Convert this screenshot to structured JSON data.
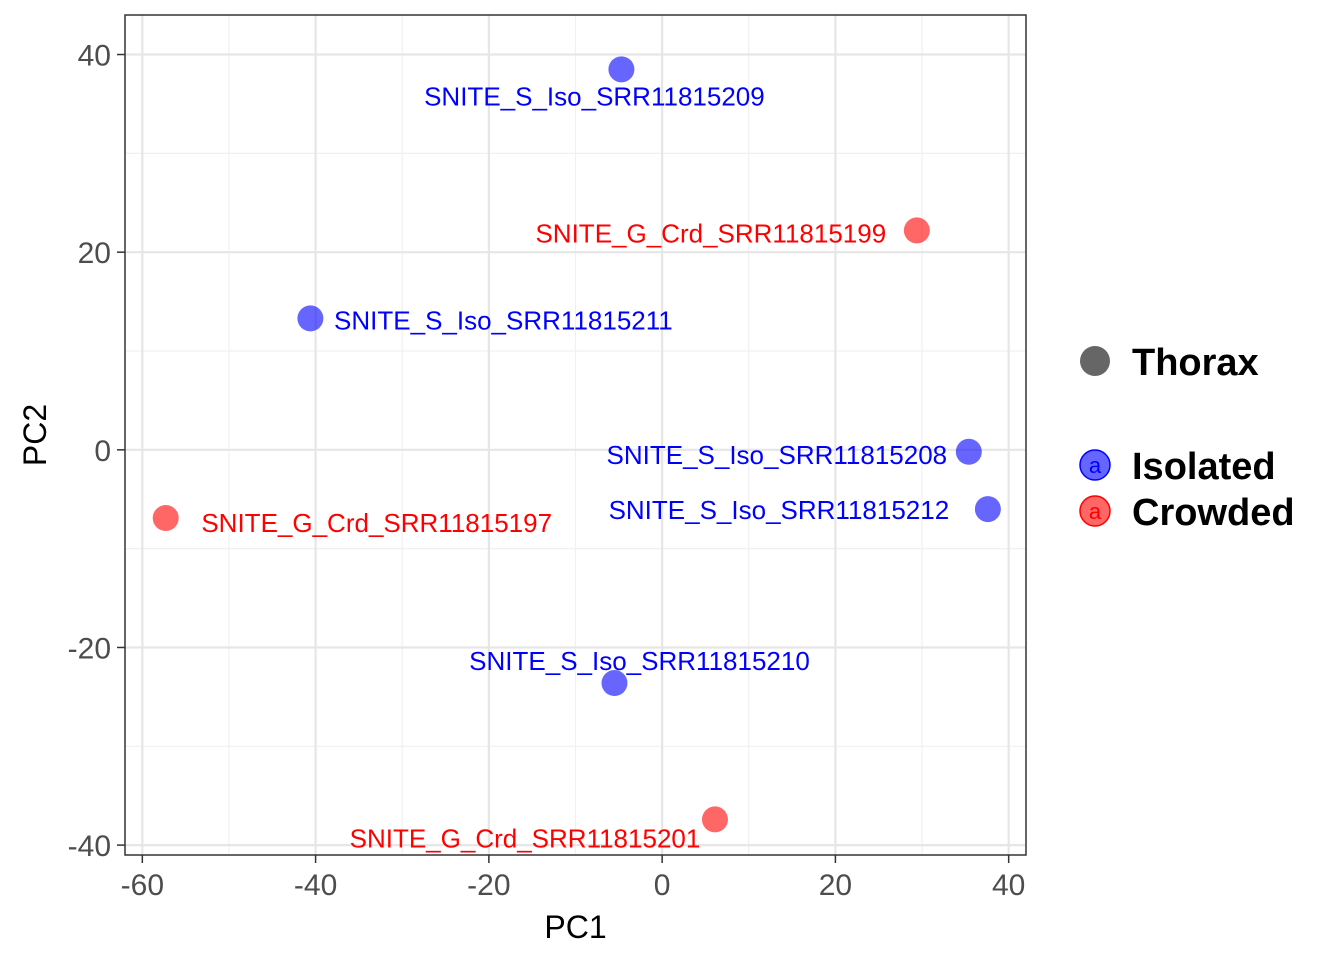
{
  "chart_data": {
    "type": "scatter",
    "title": "",
    "xlabel": "PC1",
    "ylabel": "PC2",
    "xlim": [
      -62,
      42
    ],
    "ylim": [
      -41,
      44
    ],
    "xticks": [
      -60,
      -40,
      -20,
      0,
      20,
      40
    ],
    "yticks": [
      -40,
      -20,
      0,
      20,
      40
    ],
    "xtick_labels": [
      "-60",
      "-40",
      "-20",
      "0",
      "20",
      "40"
    ],
    "ytick_labels": [
      "-40",
      "-20",
      "0",
      "20",
      "40"
    ],
    "grid": true,
    "legend_position": "right",
    "shape_legend": [
      {
        "label": "Thorax",
        "color": "#666666"
      }
    ],
    "color_legend": [
      {
        "label": "Isolated",
        "color": "#0000ff",
        "key_letter": "a"
      },
      {
        "label": "Crowded",
        "color": "#ff0000",
        "key_letter": "a"
      }
    ],
    "points": [
      {
        "label": "SNITE_S_Iso_SRR11815209",
        "x": -4.7,
        "y": 38.5,
        "group": "Isolated"
      },
      {
        "label": "SNITE_G_Crd_SRR11815199",
        "x": 29.4,
        "y": 22.2,
        "group": "Crowded"
      },
      {
        "label": "SNITE_S_Iso_SRR11815211",
        "x": -40.6,
        "y": 13.3,
        "group": "Isolated"
      },
      {
        "label": "SNITE_S_Iso_SRR11815208",
        "x": 35.4,
        "y": -0.2,
        "group": "Isolated"
      },
      {
        "label": "SNITE_S_Iso_SRR11815212",
        "x": 37.6,
        "y": -6.0,
        "group": "Isolated"
      },
      {
        "label": "SNITE_G_Crd_SRR11815197",
        "x": -57.3,
        "y": -6.9,
        "group": "Crowded"
      },
      {
        "label": "SNITE_S_Iso_SRR11815210",
        "x": -5.5,
        "y": -23.6,
        "group": "Isolated"
      },
      {
        "label": "SNITE_G_Crd_SRR11815201",
        "x": 6.1,
        "y": -37.4,
        "group": "Crowded"
      }
    ]
  }
}
